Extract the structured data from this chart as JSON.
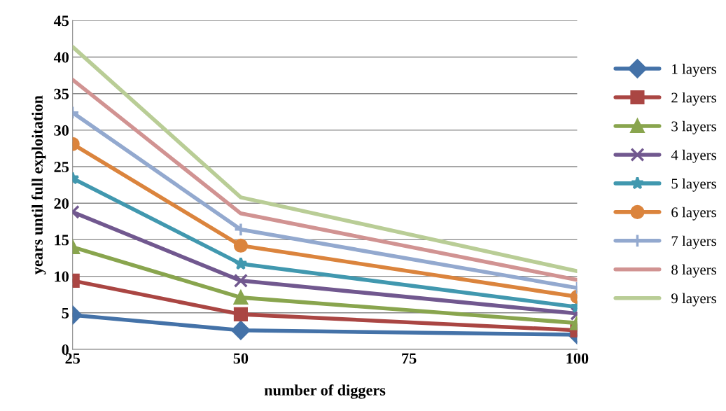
{
  "chart_data": {
    "type": "line",
    "xlabel": "number of diggers",
    "ylabel": "years until full exploitation",
    "xlim": [
      25,
      100
    ],
    "xticks": [
      25,
      50,
      75,
      100
    ],
    "ylim": [
      0,
      45
    ],
    "yticks": [
      0,
      5,
      10,
      15,
      20,
      25,
      30,
      35,
      40,
      45
    ],
    "grid": "y",
    "legend": "right",
    "line_style": "solid",
    "series": [
      {
        "name": "1 layers",
        "color": "#4472a8",
        "marker": "diamond",
        "x": [
          25,
          50,
          100
        ],
        "values": [
          4.7,
          2.6,
          2.0
        ]
      },
      {
        "name": "2 layers",
        "color": "#aa4643",
        "marker": "square",
        "x": [
          25,
          50,
          100
        ],
        "values": [
          9.4,
          4.8,
          2.6
        ]
      },
      {
        "name": "3 layers",
        "color": "#89a54e",
        "marker": "triangle",
        "x": [
          25,
          50,
          100
        ],
        "values": [
          14,
          7.1,
          3.6
        ]
      },
      {
        "name": "4 layers",
        "color": "#71588f",
        "marker": "cross",
        "x": [
          25,
          50,
          100
        ],
        "values": [
          18.8,
          9.4,
          4.9
        ]
      },
      {
        "name": "5 layers",
        "color": "#4198af",
        "marker": "star",
        "x": [
          25,
          50,
          100
        ],
        "values": [
          23.4,
          11.7,
          5.8
        ]
      },
      {
        "name": "6 layers",
        "color": "#db843d",
        "marker": "circle",
        "x": [
          25,
          50,
          100
        ],
        "values": [
          28.1,
          14.2,
          7.2
        ]
      },
      {
        "name": "7 layers",
        "color": "#93a9cf",
        "marker": "plus",
        "x": [
          25,
          50,
          100
        ],
        "values": [
          32.4,
          16.4,
          8.4
        ]
      },
      {
        "name": "8 layers",
        "color": "#d19392",
        "marker": "none",
        "x": [
          25,
          50,
          100
        ],
        "values": [
          36.9,
          18.6,
          9.5
        ]
      },
      {
        "name": "9 layers",
        "color": "#b9cd96",
        "marker": "none",
        "x": [
          25,
          50,
          100
        ],
        "values": [
          41.4,
          20.8,
          10.7
        ]
      }
    ]
  }
}
